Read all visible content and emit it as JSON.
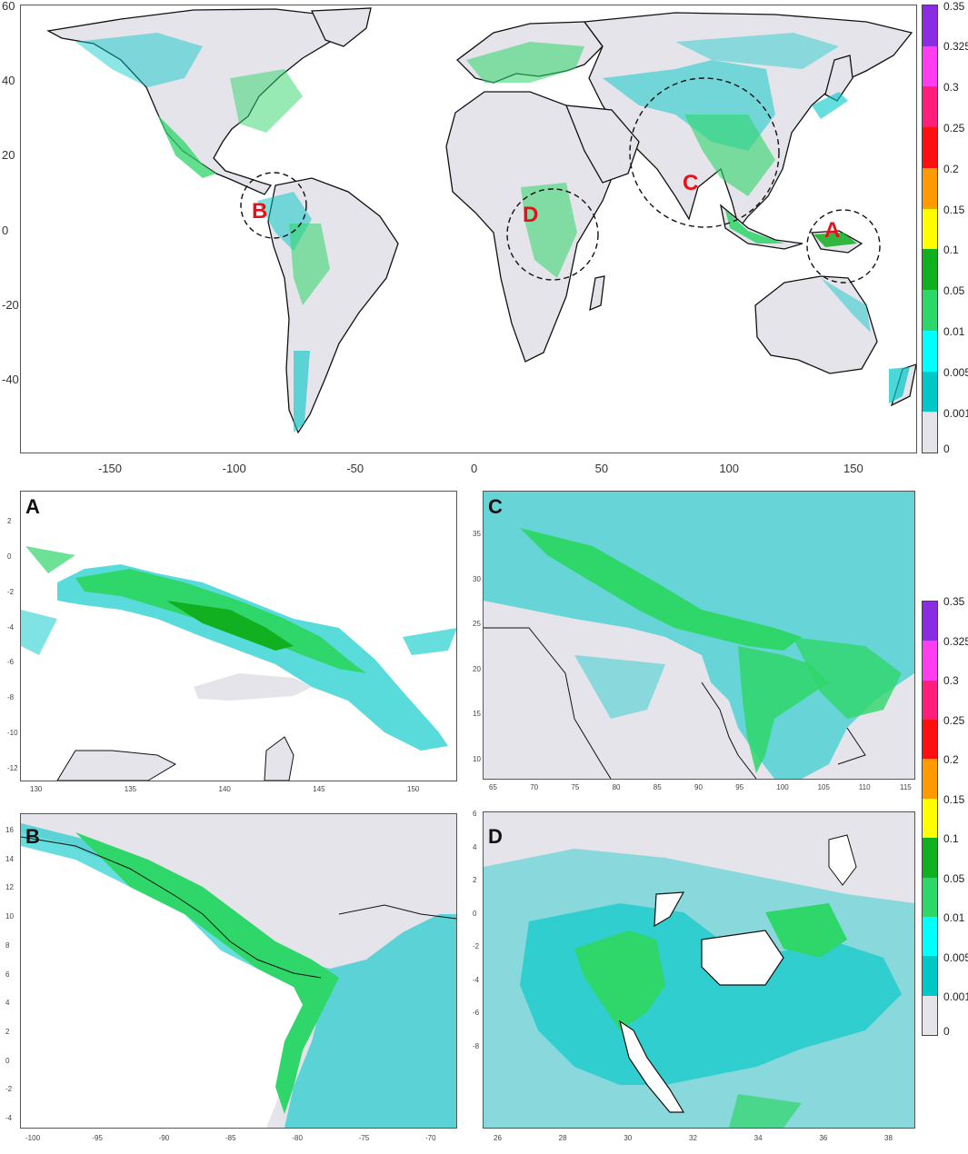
{
  "colorbar": {
    "levels": [
      "0.35",
      "0.325",
      "0.3",
      "0.25",
      "0.2",
      "0.15",
      "0.1",
      "0.05",
      "0.01",
      "0.005",
      "0.001",
      "0"
    ],
    "colors": [
      "#8b2be2",
      "#ff3df0",
      "#ff1f7a",
      "#ff1010",
      "#ff9b00",
      "#ffff00",
      "#10b020",
      "#2fd66a",
      "#00ffff",
      "#00c8c8",
      "#e4e4ea"
    ]
  },
  "main_map": {
    "x_ticks": [
      "-150",
      "-100",
      "-50",
      "0",
      "50",
      "100",
      "150"
    ],
    "y_ticks": [
      "60",
      "40",
      "20",
      "0",
      "-20",
      "-40"
    ],
    "circles": [
      {
        "label": "A"
      },
      {
        "label": "B"
      },
      {
        "label": "C"
      },
      {
        "label": "D"
      }
    ]
  },
  "panels": {
    "A": {
      "label": "A",
      "x_ticks": [
        "130",
        "135",
        "140",
        "145",
        "150"
      ],
      "y_ticks": [
        "2",
        "0",
        "-2",
        "-4",
        "-6",
        "-8",
        "-10",
        "-12"
      ]
    },
    "B": {
      "label": "B",
      "x_ticks": [
        "-100",
        "-95",
        "-90",
        "-85",
        "-80",
        "-75",
        "-70"
      ],
      "y_ticks": [
        "16",
        "14",
        "12",
        "10",
        "8",
        "6",
        "4",
        "2",
        "0",
        "-2",
        "-4"
      ]
    },
    "C": {
      "label": "C",
      "x_ticks": [
        "65",
        "70",
        "75",
        "80",
        "85",
        "90",
        "95",
        "100",
        "105",
        "110",
        "115"
      ],
      "y_ticks": [
        "35",
        "30",
        "25",
        "20",
        "15",
        "10"
      ]
    },
    "D": {
      "label": "D",
      "x_ticks": [
        "26",
        "28",
        "30",
        "32",
        "34",
        "36",
        "38"
      ],
      "y_ticks": [
        "6",
        "4",
        "2",
        "0",
        "-2",
        "-4",
        "-6",
        "-8"
      ]
    }
  }
}
